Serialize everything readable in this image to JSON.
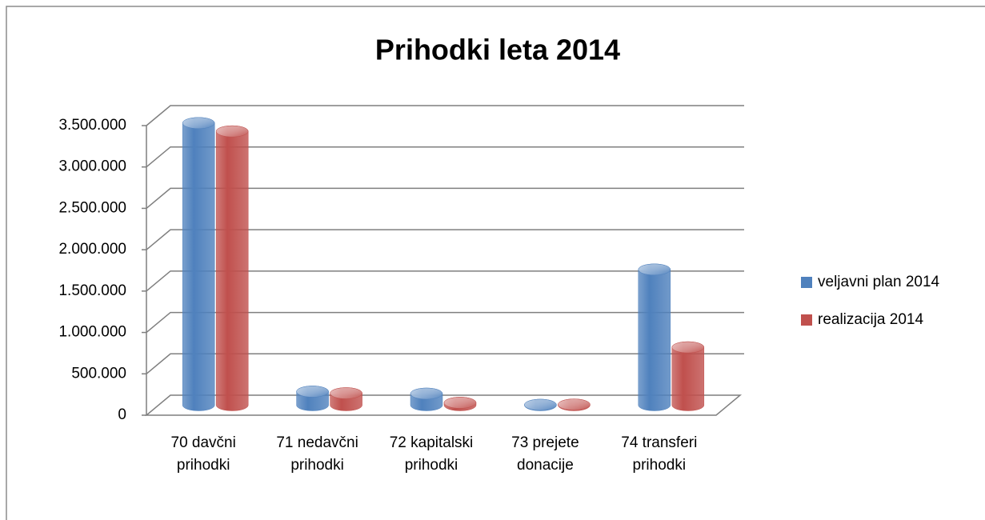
{
  "chart_data": {
    "type": "bar3d",
    "title": "Prihodki  leta 2014",
    "categories": [
      "70   davčni prihodki",
      "71 nedavčni prihodki",
      "72 kapitalski prihodki",
      "73 prejete donacije",
      "74 transferi prihodki"
    ],
    "series": [
      {
        "name": "veljavni plan 2014",
        "color": "#4f81bd",
        "values": [
          3410000,
          165000,
          140000,
          5000,
          1640000
        ]
      },
      {
        "name": "realizacija 2014",
        "color": "#c0504d",
        "values": [
          3310000,
          145000,
          30000,
          8000,
          700000
        ]
      }
    ],
    "ylim": [
      0,
      3500000
    ],
    "yticks": [
      0,
      {
        "value": 500000,
        "label": "500.000"
      },
      {
        "value": 1000000,
        "label": "1.000.000"
      },
      {
        "value": 1500000,
        "label": "1.500.000"
      },
      {
        "value": 2000000,
        "label": "2.000.000"
      },
      {
        "value": 2500000,
        "label": "2.500.000"
      },
      {
        "value": 3000000,
        "label": "3.000.000"
      },
      {
        "value": 3500000,
        "label": "3.500.000"
      }
    ],
    "grid": true,
    "legend": "right"
  }
}
